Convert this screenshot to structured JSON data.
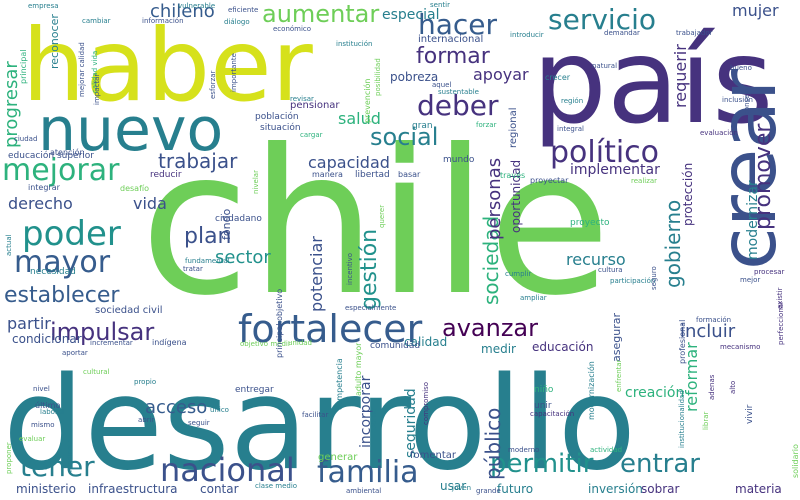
{
  "palette": {
    "purple": "#46327e",
    "indigo": "#3b518b",
    "blue": "#365c8d",
    "teal": "#277f8e",
    "cyan": "#21918c",
    "green": "#2db27d",
    "lime": "#6ece58",
    "yellow": "#d6e11b",
    "dark": "#440154"
  },
  "words": [
    {
      "text": "chile",
      "weight": 100,
      "color": "lime"
    },
    {
      "text": "desarrollo",
      "weight": 85,
      "color": "teal"
    },
    {
      "text": "país",
      "weight": 70,
      "color": "purple"
    },
    {
      "text": "haber",
      "weight": 65,
      "color": "yellow"
    },
    {
      "text": "crear",
      "weight": 55,
      "color": "indigo"
    },
    {
      "text": "nuevo",
      "weight": 45,
      "color": "teal"
    },
    {
      "text": "fortalecer",
      "weight": 30,
      "color": "blue"
    },
    {
      "text": "servicio",
      "weight": 28,
      "color": "teal"
    },
    {
      "text": "hacer",
      "weight": 28,
      "color": "blue"
    },
    {
      "text": "político",
      "weight": 26,
      "color": "purple"
    },
    {
      "text": "deber",
      "weight": 26,
      "color": "purple"
    },
    {
      "text": "mejorar",
      "weight": 26,
      "color": "green"
    },
    {
      "text": "poder",
      "weight": 26,
      "color": "cyan"
    },
    {
      "text": "mayor",
      "weight": 24,
      "color": "blue"
    },
    {
      "text": "nacional",
      "weight": 26,
      "color": "indigo"
    },
    {
      "text": "familia",
      "weight": 26,
      "color": "blue"
    },
    {
      "text": "permitir",
      "weight": 24,
      "color": "cyan"
    },
    {
      "text": "entrar",
      "weight": 24,
      "color": "teal"
    },
    {
      "text": "tener",
      "weight": 22,
      "color": "teal"
    },
    {
      "text": "impulsar",
      "weight": 22,
      "color": "purple"
    },
    {
      "text": "avanzar",
      "weight": 22,
      "color": "dark"
    },
    {
      "text": "aumentar",
      "weight": 20,
      "color": "lime"
    },
    {
      "text": "formar",
      "weight": 20,
      "color": "purple"
    },
    {
      "text": "promover",
      "weight": 22,
      "color": "purple"
    },
    {
      "text": "gobierno",
      "weight": 20,
      "color": "teal"
    },
    {
      "text": "público",
      "weight": 20,
      "color": "indigo"
    },
    {
      "text": "establecer",
      "weight": 18,
      "color": "blue"
    },
    {
      "text": "incluir",
      "weight": 18,
      "color": "indigo"
    },
    {
      "text": "sociedad",
      "weight": 18,
      "color": "green"
    },
    {
      "text": "social",
      "weight": 18,
      "color": "teal"
    },
    {
      "text": "trabajar",
      "weight": 16,
      "color": "indigo"
    },
    {
      "text": "plan",
      "weight": 16,
      "color": "indigo"
    },
    {
      "text": "sector",
      "weight": 14,
      "color": "cyan"
    },
    {
      "text": "gestión",
      "weight": 16,
      "color": "cyan"
    },
    {
      "text": "personas",
      "weight": 14,
      "color": "purple"
    },
    {
      "text": "apoyar",
      "weight": 14,
      "color": "purple"
    },
    {
      "text": "salud",
      "weight": 14,
      "color": "green"
    },
    {
      "text": "capacidad",
      "weight": 14,
      "color": "indigo"
    },
    {
      "text": "mujer",
      "weight": 13,
      "color": "indigo"
    },
    {
      "text": "especial",
      "weight": 12,
      "color": "teal"
    },
    {
      "text": "chileno",
      "weight": 13,
      "color": "blue"
    },
    {
      "text": "derecho",
      "weight": 13,
      "color": "indigo"
    },
    {
      "text": "vida",
      "weight": 13,
      "color": "indigo"
    },
    {
      "text": "acceso",
      "weight": 13,
      "color": "blue"
    },
    {
      "text": "recurso",
      "weight": 13,
      "color": "teal"
    },
    {
      "text": "partir",
      "weight": 12,
      "color": "indigo"
    },
    {
      "text": "implementar",
      "weight": 12,
      "color": "purple"
    },
    {
      "text": "reformar",
      "weight": 12,
      "color": "green"
    },
    {
      "text": "modernizar",
      "weight": 12,
      "color": "teal"
    },
    {
      "text": "requerir",
      "weight": 12,
      "color": "purple"
    },
    {
      "text": "progresar",
      "weight": 13,
      "color": "green"
    },
    {
      "text": "potenciar",
      "weight": 12,
      "color": "indigo"
    },
    {
      "text": "seguridad",
      "weight": 11,
      "color": "teal"
    },
    {
      "text": "incorporar",
      "weight": 11,
      "color": "indigo"
    },
    {
      "text": "educación",
      "weight": 10,
      "color": "purple"
    },
    {
      "text": "calidad",
      "weight": 10,
      "color": "teal"
    },
    {
      "text": "medir",
      "weight": 10,
      "color": "teal"
    },
    {
      "text": "ministerio",
      "weight": 10,
      "color": "indigo"
    },
    {
      "text": "infraestructura",
      "weight": 10,
      "color": "indigo"
    },
    {
      "text": "contar",
      "weight": 10,
      "color": "indigo"
    },
    {
      "text": "usar",
      "weight": 10,
      "color": "teal"
    },
    {
      "text": "futuro",
      "weight": 10,
      "color": "teal"
    },
    {
      "text": "inversión",
      "weight": 10,
      "color": "teal"
    },
    {
      "text": "sobrar",
      "weight": 10,
      "color": "purple"
    },
    {
      "text": "materia",
      "weight": 10,
      "color": "purple"
    },
    {
      "text": "protección",
      "weight": 9,
      "color": "purple"
    },
    {
      "text": "oportunidad",
      "weight": 9,
      "color": "purple"
    },
    {
      "text": "pobreza",
      "weight": 9,
      "color": "indigo"
    },
    {
      "text": "internacional",
      "weight": 8,
      "color": "indigo"
    },
    {
      "text": "libertad",
      "weight": 8,
      "color": "indigo"
    },
    {
      "text": "sociedad civil",
      "weight": 7,
      "color": "indigo"
    },
    {
      "text": "condicionar",
      "weight": 8,
      "color": "indigo"
    },
    {
      "text": "generar",
      "weight": 9,
      "color": "lime"
    },
    {
      "text": "fomentar",
      "weight": 8,
      "color": "indigo"
    },
    {
      "text": "regional",
      "weight": 8,
      "color": "indigo"
    },
    {
      "text": "asegurar",
      "weight": 8,
      "color": "indigo"
    },
    {
      "text": "pensionar",
      "weight": 8,
      "color": "purple"
    },
    {
      "text": "ciudadano",
      "weight": 7,
      "color": "indigo"
    },
    {
      "text": "fondo",
      "weight": 6,
      "color": "indigo"
    },
    {
      "text": "proyecto",
      "weight": 7,
      "color": "green"
    },
    {
      "text": "mundo",
      "weight": 7,
      "color": "indigo"
    },
    {
      "text": "gran",
      "weight": 7,
      "color": "teal"
    },
    {
      "text": "entregar",
      "weight": 7,
      "color": "indigo"
    },
    {
      "text": "comunidad",
      "weight": 6,
      "color": "indigo"
    },
    {
      "text": "situación",
      "weight": 6,
      "color": "indigo"
    },
    {
      "text": "creación",
      "weight": 6,
      "color": "green"
    },
    {
      "text": "niño",
      "weight": 8,
      "color": "green"
    },
    {
      "text": "unir",
      "weight": 7,
      "color": "indigo"
    },
    {
      "text": "vivir",
      "weight": 7,
      "color": "indigo"
    },
    {
      "text": "reducir",
      "weight": 6,
      "color": "purple"
    },
    {
      "text": "atención",
      "weight": 6,
      "color": "indigo"
    },
    {
      "text": "educación superior",
      "weight": 5,
      "color": "indigo"
    },
    {
      "text": "necesidad",
      "weight": 6,
      "color": "teal"
    },
    {
      "text": "población",
      "weight": 5,
      "color": "indigo"
    },
    {
      "text": "manera",
      "weight": 5,
      "color": "indigo"
    },
    {
      "text": "basar",
      "weight": 5,
      "color": "indigo"
    },
    {
      "text": "proyectar",
      "weight": 5,
      "color": "indigo"
    },
    {
      "text": "desafío",
      "weight": 5,
      "color": "lime"
    },
    {
      "text": "integrar",
      "weight": 5,
      "color": "indigo"
    },
    {
      "text": "través",
      "weight": 5,
      "color": "green"
    },
    {
      "text": "crecer",
      "weight": 5,
      "color": "teal"
    },
    {
      "text": "región",
      "weight": 5,
      "color": "teal"
    },
    {
      "text": "natural",
      "weight": 4,
      "color": "indigo"
    },
    {
      "text": "bueno",
      "weight": 4,
      "color": "indigo"
    },
    {
      "text": "inclusión",
      "weight": 4,
      "color": "indigo"
    },
    {
      "text": "evaluación",
      "weight": 4,
      "color": "purple"
    },
    {
      "text": "formación",
      "weight": 4,
      "color": "indigo"
    },
    {
      "text": "cultura",
      "weight": 4,
      "color": "indigo"
    },
    {
      "text": "participación",
      "weight": 4,
      "color": "teal"
    },
    {
      "text": "ampliar",
      "weight": 4,
      "color": "teal"
    },
    {
      "text": "cumplir",
      "weight": 4,
      "color": "teal"
    },
    {
      "text": "seguro",
      "weight": 4,
      "color": "indigo"
    },
    {
      "text": "mecanismo",
      "weight": 4,
      "color": "purple"
    },
    {
      "text": "modernización",
      "weight": 4,
      "color": "teal"
    },
    {
      "text": "compromiso",
      "weight": 4,
      "color": "purple"
    },
    {
      "text": "capacitación",
      "weight": 4,
      "color": "purple"
    },
    {
      "text": "actividad",
      "weight": 4,
      "color": "green"
    },
    {
      "text": "moderno",
      "weight": 4,
      "color": "indigo"
    },
    {
      "text": "joven",
      "weight": 4,
      "color": "teal"
    },
    {
      "text": "grande",
      "weight": 4,
      "color": "indigo"
    },
    {
      "text": "ambiental",
      "weight": 4,
      "color": "indigo"
    },
    {
      "text": "clase medio",
      "weight": 4,
      "color": "teal"
    },
    {
      "text": "facilitar",
      "weight": 4,
      "color": "indigo"
    },
    {
      "text": "abrir",
      "weight": 4,
      "color": "indigo"
    },
    {
      "text": "seguir",
      "weight": 4,
      "color": "indigo"
    },
    {
      "text": "único",
      "weight": 4,
      "color": "teal"
    },
    {
      "text": "propio",
      "weight": 4,
      "color": "teal"
    },
    {
      "text": "cultural",
      "weight": 4,
      "color": "lime"
    },
    {
      "text": "nivel",
      "weight": 4,
      "color": "indigo"
    },
    {
      "text": "último",
      "weight": 4,
      "color": "indigo"
    },
    {
      "text": "laboral",
      "weight": 4,
      "color": "teal"
    },
    {
      "text": "mismo",
      "weight": 4,
      "color": "indigo"
    },
    {
      "text": "evaluar",
      "weight": 4,
      "color": "lime"
    },
    {
      "text": "incrementar",
      "weight": 4,
      "color": "indigo"
    },
    {
      "text": "aportar",
      "weight": 4,
      "color": "indigo"
    },
    {
      "text": "indígena",
      "weight": 4,
      "color": "indigo"
    },
    {
      "text": "objetivo medir",
      "weight": 4,
      "color": "lime"
    },
    {
      "text": "unidad",
      "weight": 4,
      "color": "lime"
    },
    {
      "text": "principal objetivo",
      "weight": 4,
      "color": "indigo"
    },
    {
      "text": "fundamental",
      "weight": 4,
      "color": "teal"
    },
    {
      "text": "tratar",
      "weight": 4,
      "color": "indigo"
    },
    {
      "text": "especialmente",
      "weight": 4,
      "color": "indigo"
    },
    {
      "text": "revisar",
      "weight": 4,
      "color": "teal"
    },
    {
      "text": "cargar",
      "weight": 4,
      "color": "green"
    },
    {
      "text": "forzar",
      "weight": 4,
      "color": "green"
    },
    {
      "text": "integral",
      "weight": 4,
      "color": "indigo"
    },
    {
      "text": "realizar",
      "weight": 4,
      "color": "lime"
    },
    {
      "text": "aquel",
      "weight": 4,
      "color": "indigo"
    },
    {
      "text": "sustentable",
      "weight": 4,
      "color": "teal"
    },
    {
      "text": "empresa",
      "weight": 4,
      "color": "teal"
    },
    {
      "text": "cambiar",
      "weight": 4,
      "color": "teal"
    },
    {
      "text": "información",
      "weight": 4,
      "color": "indigo"
    },
    {
      "text": "vulnerable",
      "weight": 4,
      "color": "teal"
    },
    {
      "text": "eficiente",
      "weight": 4,
      "color": "indigo"
    },
    {
      "text": "diálogo",
      "weight": 4,
      "color": "teal"
    },
    {
      "text": "económico",
      "weight": 4,
      "color": "indigo"
    },
    {
      "text": "sentir",
      "weight": 4,
      "color": "teal"
    },
    {
      "text": "introducir",
      "weight": 4,
      "color": "teal"
    },
    {
      "text": "demandar",
      "weight": 4,
      "color": "indigo"
    },
    {
      "text": "trabajador",
      "weight": 4,
      "color": "indigo"
    },
    {
      "text": "institución",
      "weight": 4,
      "color": "teal"
    },
    {
      "text": "reconocer",
      "weight": 4,
      "color": "teal"
    },
    {
      "text": "principal",
      "weight": 5,
      "color": "green"
    },
    {
      "text": "calidad vida",
      "weight": 4,
      "color": "green"
    },
    {
      "text": "mejorar calidad",
      "weight": 4,
      "color": "indigo"
    },
    {
      "text": "impactar",
      "weight": 4,
      "color": "indigo"
    },
    {
      "text": "esforzar",
      "weight": 4,
      "color": "indigo"
    },
    {
      "text": "importante",
      "weight": 4,
      "color": "indigo"
    },
    {
      "text": "ciudad",
      "weight": 4,
      "color": "indigo"
    },
    {
      "text": "actual",
      "weight": 4,
      "color": "teal"
    },
    {
      "text": "proponer",
      "weight": 4,
      "color": "lime"
    },
    {
      "text": "mediante",
      "weight": 4,
      "color": "teal"
    },
    {
      "text": "competencia",
      "weight": 4,
      "color": "teal"
    },
    {
      "text": "adulto mayor",
      "weight": 4,
      "color": "lime"
    },
    {
      "text": "poner",
      "weight": 4,
      "color": "teal"
    },
    {
      "text": "enfrentar",
      "weight": 4,
      "color": "lime"
    },
    {
      "text": "adenas",
      "weight": 4,
      "color": "purple"
    },
    {
      "text": "alto",
      "weight": 4,
      "color": "purple"
    },
    {
      "text": "librar",
      "weight": 4,
      "color": "lime"
    },
    {
      "text": "solidario",
      "weight": 4,
      "color": "lime"
    },
    {
      "text": "perfeccionar",
      "weight": 4,
      "color": "purple"
    },
    {
      "text": "existir",
      "weight": 4,
      "color": "purple"
    },
    {
      "text": "procesar",
      "weight": 4,
      "color": "purple"
    },
    {
      "text": "mejor",
      "weight": 4,
      "color": "indigo"
    },
    {
      "text": "consejo",
      "weight": 4,
      "color": "indigo"
    },
    {
      "text": "profesional",
      "weight": 4,
      "color": "indigo"
    },
    {
      "text": "institucionalidad",
      "weight": 4,
      "color": "teal"
    },
    {
      "text": "prevención",
      "weight": 4,
      "color": "lime"
    },
    {
      "text": "posibilidad",
      "weight": 4,
      "color": "lime"
    },
    {
      "text": "nivelar",
      "weight": 4,
      "color": "lime"
    },
    {
      "text": "incentivo",
      "weight": 4,
      "color": "indigo"
    },
    {
      "text": "querer",
      "weight": 4,
      "color": "lime"
    },
    {
      "text": "central",
      "weight": 4,
      "color": "lime"
    }
  ]
}
